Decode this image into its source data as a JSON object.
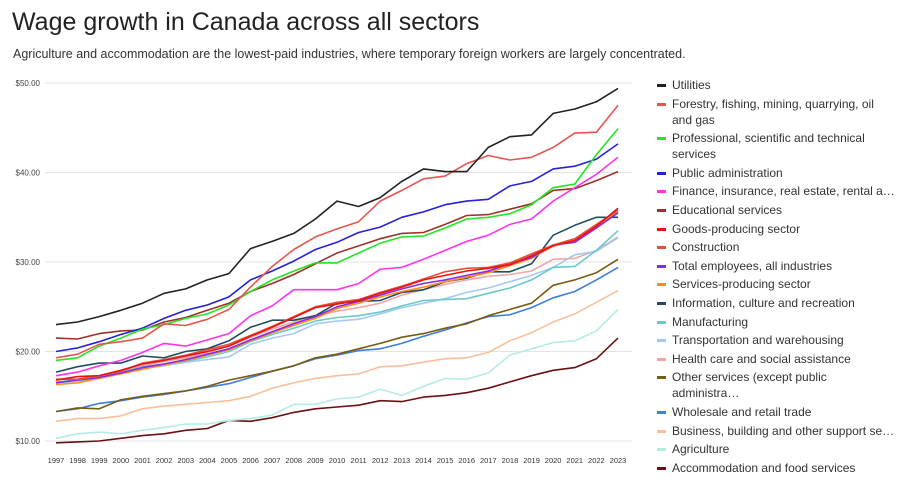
{
  "title": "Wage growth in Canada across all sectors",
  "subtitle": "Agriculture and accommodation are the lowest-paid industries, where temporary foreign workers are largely concentrated.",
  "chart_data": {
    "type": "line",
    "title": "Wage growth in Canada across all sectors",
    "xlabel": "",
    "ylabel": "",
    "ylim": [
      10,
      50
    ],
    "y_ticks": [
      "$10.00",
      "$20.00",
      "$30.00",
      "$40.00",
      "$50.00"
    ],
    "y_tick_values": [
      10,
      20,
      30,
      40,
      50
    ],
    "grid": true,
    "legend_position": "right",
    "x": [
      1997,
      1998,
      1999,
      2000,
      2001,
      2002,
      2003,
      2004,
      2005,
      2006,
      2007,
      2008,
      2009,
      2010,
      2011,
      2012,
      2013,
      2014,
      2015,
      2016,
      2017,
      2018,
      2019,
      2020,
      2021,
      2022,
      2023
    ],
    "series": [
      {
        "name": "Utilities",
        "legend": "Utilities",
        "color": "#222222",
        "values": [
          23.0,
          23.3,
          23.9,
          24.6,
          25.4,
          26.5,
          27.0,
          28.0,
          28.7,
          31.5,
          32.3,
          33.2,
          34.8,
          36.8,
          36.2,
          37.2,
          39.0,
          40.4,
          40.1,
          40.1,
          42.8,
          44.0,
          44.2,
          46.6,
          47.1,
          47.9,
          49.4
        ]
      },
      {
        "name": "Forestry, fishing, mining, quarrying, oil and gas",
        "legend": "Forestry, fishing, mining, quarrying, oil and gas",
        "color": "#e8554e",
        "values": [
          19.3,
          19.7,
          20.8,
          21.1,
          21.5,
          23.1,
          22.9,
          23.6,
          24.7,
          27.2,
          29.5,
          31.4,
          32.8,
          33.7,
          34.5,
          36.8,
          38.0,
          39.3,
          39.6,
          41.0,
          41.9,
          41.4,
          41.7,
          42.8,
          44.4,
          44.5,
          47.5
        ]
      },
      {
        "name": "Professional, scientific and technical services",
        "legend": "Professional, scientific and technical services",
        "color": "#22e622",
        "values": [
          19.0,
          19.3,
          20.6,
          21.5,
          22.5,
          23.0,
          23.7,
          24.2,
          25.2,
          26.7,
          28.0,
          29.0,
          29.9,
          29.9,
          31.0,
          32.1,
          32.8,
          32.9,
          33.8,
          34.8,
          35.0,
          35.4,
          36.4,
          38.3,
          38.7,
          42.0,
          44.9
        ]
      },
      {
        "name": "Public administration",
        "legend": "Public administration",
        "color": "#2222dd",
        "values": [
          20.0,
          20.4,
          21.1,
          21.9,
          22.6,
          23.7,
          24.6,
          25.2,
          26.1,
          28.0,
          29.0,
          30.1,
          31.4,
          32.2,
          33.3,
          33.9,
          35.0,
          35.6,
          36.4,
          36.8,
          37.0,
          38.5,
          39.0,
          40.4,
          40.7,
          41.5,
          43.2
        ]
      },
      {
        "name": "Finance, insurance, real estate, rental a...",
        "legend": "Finance, insurance, real estate, rental a…",
        "color": "#ff33ee",
        "values": [
          17.3,
          17.7,
          18.4,
          19.0,
          19.9,
          20.9,
          20.6,
          21.3,
          22.0,
          24.0,
          25.1,
          26.9,
          26.9,
          26.9,
          27.6,
          29.2,
          29.4,
          30.3,
          31.3,
          32.3,
          33.0,
          34.2,
          34.8,
          36.8,
          38.3,
          39.8,
          41.7
        ]
      },
      {
        "name": "Educational services",
        "legend": "Educational services",
        "color": "#a0302a",
        "values": [
          21.5,
          21.4,
          22.0,
          22.3,
          22.4,
          23.3,
          23.8,
          24.6,
          25.4,
          26.7,
          27.6,
          28.6,
          29.8,
          31.0,
          31.8,
          32.6,
          33.2,
          33.3,
          34.2,
          35.2,
          35.3,
          35.9,
          36.5,
          38.0,
          38.2,
          39.1,
          40.1
        ]
      },
      {
        "name": "Goods-producing sector",
        "legend": "Goods-producing sector",
        "color": "#ee1111",
        "values": [
          16.8,
          17.2,
          17.3,
          17.9,
          18.6,
          19.0,
          19.5,
          20.0,
          20.6,
          21.7,
          22.7,
          23.8,
          24.9,
          25.3,
          25.7,
          26.5,
          27.2,
          28.0,
          28.5,
          29.0,
          29.3,
          29.7,
          30.7,
          31.8,
          32.4,
          34.0,
          36.0
        ]
      },
      {
        "name": "Construction",
        "legend": "Construction",
        "color": "#e0533a",
        "values": [
          16.9,
          16.9,
          17.3,
          17.8,
          18.7,
          19.1,
          19.6,
          20.2,
          20.8,
          21.8,
          22.8,
          23.9,
          25.0,
          25.5,
          25.8,
          26.6,
          27.3,
          28.1,
          28.9,
          29.3,
          29.4,
          29.9,
          30.9,
          31.9,
          32.6,
          34.2,
          35.8
        ]
      },
      {
        "name": "Total employees, all industries",
        "legend": "Total employees, all industries",
        "color": "#8a2be2",
        "values": [
          16.5,
          16.8,
          17.1,
          17.6,
          18.2,
          18.6,
          19.1,
          19.7,
          20.3,
          21.3,
          22.2,
          23.1,
          23.9,
          25.0,
          25.6,
          26.3,
          27.0,
          27.6,
          28.0,
          28.5,
          29.0,
          29.8,
          30.5,
          31.9,
          32.2,
          33.8,
          35.5
        ]
      },
      {
        "name": "Services-producing sector",
        "legend": "Services-producing sector",
        "color": "#ff8c1a",
        "values": [
          16.3,
          16.5,
          17.0,
          17.5,
          18.0,
          18.5,
          19.0,
          19.6,
          20.2,
          21.2,
          22.1,
          22.9,
          23.7,
          24.8,
          25.4,
          26.1,
          26.7,
          27.2,
          27.8,
          28.3,
          28.8,
          29.6,
          30.4,
          31.8,
          32.4,
          34.0,
          35.6
        ]
      },
      {
        "name": "Information, culture and recreation",
        "legend": "Information, culture and recreation",
        "color": "#1f4e5f",
        "values": [
          17.7,
          18.3,
          18.7,
          18.7,
          19.5,
          19.3,
          20.0,
          20.3,
          21.2,
          22.7,
          23.5,
          23.5,
          24.0,
          25.4,
          25.6,
          25.7,
          26.6,
          26.9,
          27.8,
          28.2,
          28.9,
          28.9,
          29.8,
          33.0,
          34.1,
          35.0,
          35.0
        ]
      },
      {
        "name": "Manufacturing",
        "legend": "Manufacturing",
        "color": "#6cc9c9",
        "values": [
          16.6,
          16.8,
          17.1,
          17.7,
          18.3,
          18.6,
          18.9,
          19.4,
          20.0,
          21.1,
          21.9,
          22.6,
          23.4,
          23.8,
          24.0,
          24.4,
          25.1,
          25.7,
          25.8,
          25.9,
          26.5,
          27.1,
          28.0,
          29.4,
          29.5,
          31.3,
          33.5
        ]
      },
      {
        "name": "Transportation and warehousing",
        "legend": "Transportation and warehousing",
        "color": "#a6c8f0",
        "values": [
          16.5,
          16.7,
          17.0,
          17.6,
          18.1,
          18.4,
          18.8,
          19.1,
          19.4,
          20.8,
          21.5,
          22.0,
          23.1,
          23.4,
          23.6,
          24.2,
          24.9,
          25.4,
          25.9,
          26.6,
          27.1,
          27.8,
          28.5,
          29.4,
          30.8,
          31.2,
          32.7
        ]
      },
      {
        "name": "Health care and social assistance",
        "legend": "Health care and social assistance",
        "color": "#f5a5a5",
        "values": [
          16.6,
          16.8,
          17.1,
          17.8,
          18.4,
          18.9,
          19.3,
          19.9,
          20.6,
          21.6,
          22.5,
          23.3,
          24.0,
          24.5,
          24.9,
          25.4,
          26.3,
          26.9,
          27.5,
          28.0,
          28.4,
          28.6,
          29.0,
          30.3,
          30.4,
          31.3,
          32.8
        ]
      },
      {
        "name": "Other services (except public administra...",
        "legend": "Other services (except public administra…",
        "color": "#7b5a12",
        "values": [
          13.3,
          13.7,
          13.6,
          14.6,
          15.0,
          15.3,
          15.6,
          16.1,
          16.8,
          17.3,
          17.8,
          18.4,
          19.3,
          19.7,
          20.3,
          20.9,
          21.6,
          22.0,
          22.6,
          23.1,
          24.0,
          24.7,
          25.4,
          27.4,
          28.0,
          28.8,
          30.3
        ]
      },
      {
        "name": "Wholesale and retail trade",
        "legend": "Wholesale and retail trade",
        "color": "#3c7fe0",
        "values": [
          13.3,
          13.6,
          14.2,
          14.5,
          14.9,
          15.2,
          15.6,
          16.0,
          16.4,
          17.1,
          17.8,
          18.4,
          19.2,
          19.6,
          20.1,
          20.3,
          20.9,
          21.7,
          22.4,
          23.2,
          23.9,
          24.1,
          24.9,
          26.0,
          26.7,
          28.0,
          29.4
        ]
      },
      {
        "name": "Business, building and other support se...",
        "legend": "Business, building and other support se…",
        "color": "#f8c09a",
        "values": [
          12.2,
          12.5,
          12.5,
          12.8,
          13.6,
          13.9,
          14.1,
          14.3,
          14.5,
          15.0,
          15.9,
          16.5,
          17.0,
          17.3,
          17.5,
          18.3,
          18.4,
          18.8,
          19.2,
          19.3,
          19.9,
          21.2,
          22.1,
          23.3,
          24.2,
          25.5,
          26.8
        ]
      },
      {
        "name": "Agriculture",
        "legend": "Agriculture",
        "color": "#b5ebe6",
        "values": [
          10.3,
          10.8,
          11.0,
          10.8,
          11.2,
          11.5,
          11.9,
          11.9,
          12.3,
          12.5,
          12.9,
          14.1,
          14.1,
          14.7,
          14.9,
          15.8,
          15.1,
          16.1,
          17.0,
          16.9,
          17.6,
          19.6,
          20.3,
          21.0,
          21.2,
          22.3,
          24.7
        ]
      },
      {
        "name": "Accommodation and food services",
        "legend": "Accommodation and food services",
        "color": "#6b1010",
        "values": [
          9.8,
          9.9,
          10.0,
          10.3,
          10.6,
          10.8,
          11.2,
          11.4,
          12.3,
          12.2,
          12.6,
          13.2,
          13.6,
          13.8,
          14.0,
          14.5,
          14.4,
          14.9,
          15.1,
          15.4,
          15.9,
          16.6,
          17.3,
          17.9,
          18.2,
          19.2,
          21.5
        ]
      }
    ]
  }
}
